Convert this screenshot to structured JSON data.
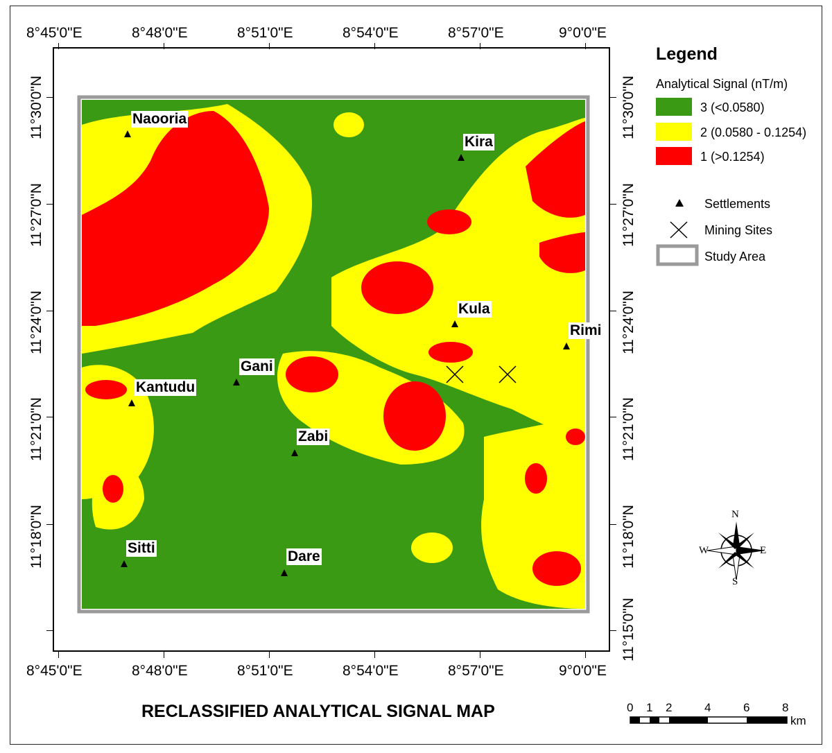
{
  "map": {
    "title": "RECLASSIFIED ANALYTICAL SIGNAL MAP",
    "colors": {
      "class3": "#3b9a13",
      "class2": "#ffff00",
      "class1": "#ff0000",
      "border": "#9a9a9a"
    }
  },
  "axes": {
    "x_ticks": [
      "8°45'0\"E",
      "8°48'0\"E",
      "8°51'0\"E",
      "8°54'0\"E",
      "8°57'0\"E",
      "9°0'0\"E"
    ],
    "y_ticks": [
      "11°30'0\"N",
      "11°27'0\"N",
      "11°24'0\"N",
      "11°21'0\"N",
      "11°18'0\"N",
      "11°15'0\"N"
    ]
  },
  "settlements": [
    {
      "name": "Naooria"
    },
    {
      "name": "Kira"
    },
    {
      "name": "Kula"
    },
    {
      "name": "Rimi"
    },
    {
      "name": "Gani"
    },
    {
      "name": "Kantudu"
    },
    {
      "name": "Zabi"
    },
    {
      "name": "Sitti"
    },
    {
      "name": "Dare"
    }
  ],
  "legend": {
    "title": "Legend",
    "subtitle": "Analytical Signal (nT/m)",
    "classes": [
      {
        "label": "3 (<0.0580)",
        "color": "#3b9a13"
      },
      {
        "label": "2 (0.0580 - 0.1254)",
        "color": "#ffff00"
      },
      {
        "label": "1 (>0.1254)",
        "color": "#ff0000"
      }
    ],
    "symbols": {
      "settlements": "Settlements",
      "mining_sites": "Mining Sites",
      "study_area": "Study Area"
    }
  },
  "compass": {
    "n": "N",
    "s": "S",
    "e": "E",
    "w": "W"
  },
  "scale_bar": {
    "ticks": [
      "0",
      "1",
      "2",
      "4",
      "6",
      "8"
    ],
    "unit": "km"
  }
}
